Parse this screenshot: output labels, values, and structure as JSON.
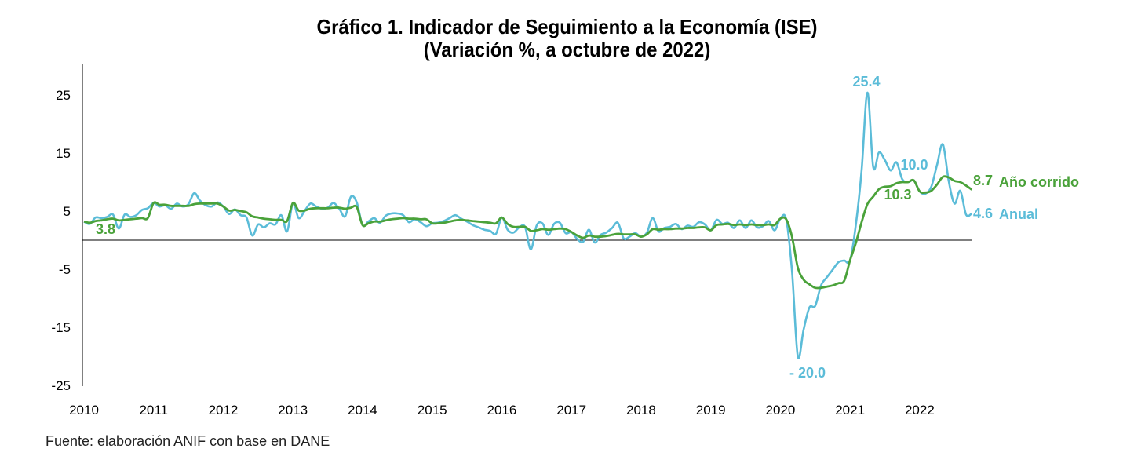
{
  "title": "Gráfico 1. Indicador de Seguimiento a la Economía (ISE)",
  "subtitle": "(Variación %, a octubre de 2022)",
  "source": "Fuente: elaboración ANIF con base en DANE",
  "chart_data": {
    "type": "line",
    "title": "Gráfico 1. Indicador de Seguimiento a la Economía (ISE)",
    "subtitle": "(Variación %, a octubre de 2022)",
    "xlabel": "",
    "ylabel": "",
    "ylim": [
      -25,
      30
    ],
    "yticks": [
      25,
      15,
      5,
      -5,
      -15,
      -25
    ],
    "ytick_labels": [
      "25",
      "15",
      "5",
      "-5",
      "-15",
      "-25"
    ],
    "x_start": 2010,
    "x_end_year": 2022,
    "x_end_month": 10,
    "xticks": [
      "2010",
      "2011",
      "2012",
      "2013",
      "2014",
      "2015",
      "2016",
      "2017",
      "2018",
      "2019",
      "2020",
      "2021",
      "2022"
    ],
    "baseline": 0,
    "colors": {
      "anual": "#5bbcd8",
      "corrido": "#4aa23a",
      "axis": "#000000"
    },
    "series": [
      {
        "name": "Anual",
        "color": "#5bbcd8",
        "values": [
          3.2,
          2.8,
          3.9,
          3.8,
          4.0,
          4.4,
          2.0,
          4.4,
          4.0,
          4.3,
          5.2,
          5.5,
          6.4,
          5.8,
          6.0,
          5.4,
          6.3,
          5.8,
          6.2,
          8.1,
          6.8,
          6.0,
          5.8,
          6.5,
          5.8,
          4.5,
          5.3,
          4.3,
          3.9,
          0.8,
          2.7,
          2.2,
          2.9,
          2.7,
          4.3,
          1.5,
          6.4,
          3.8,
          5.0,
          6.3,
          5.8,
          5.4,
          5.6,
          6.4,
          5.4,
          4.1,
          7.5,
          6.5,
          2.6,
          3.2,
          3.8,
          3.0,
          4.2,
          4.6,
          4.6,
          4.3,
          3.1,
          3.6,
          3.1,
          2.4,
          2.9,
          3.0,
          3.3,
          3.8,
          4.3,
          3.7,
          3.2,
          2.6,
          2.2,
          1.8,
          1.6,
          1.1,
          3.9,
          1.8,
          1.3,
          2.2,
          2.3,
          -1.6,
          2.5,
          2.9,
          0.9,
          2.8,
          3.0,
          1.2,
          1.4,
          0.2,
          -0.3,
          1.8,
          -0.4,
          0.9,
          1.3,
          2.1,
          3.0,
          0.3,
          0.6,
          1.2,
          0.6,
          1.3,
          3.8,
          1.5,
          2.1,
          2.3,
          2.8,
          1.9,
          2.5,
          2.3,
          3.1,
          2.7,
          1.7,
          3.5,
          2.8,
          3.0,
          2.1,
          3.4,
          2.1,
          3.4,
          2.2,
          2.4,
          3.3,
          1.7,
          3.7,
          3.6,
          -5.3,
          -20.0,
          -15.4,
          -11.6,
          -11.3,
          -7.8,
          -6.4,
          -5.1,
          -3.8,
          -3.5,
          -3.5,
          2.6,
          12.0,
          25.4,
          12.6,
          15.1,
          13.8,
          12.0,
          13.4,
          10.5,
          10.0,
          10.3,
          8.4,
          8.0,
          9.2,
          13.0,
          16.5,
          10.2,
          6.3,
          8.5,
          4.4,
          4.6
        ]
      },
      {
        "name": "Año corrido",
        "color": "#4aa23a",
        "values": [
          3.2,
          3.0,
          3.3,
          3.4,
          3.6,
          3.7,
          3.4,
          3.5,
          3.6,
          3.7,
          3.8,
          3.8,
          6.4,
          6.1,
          6.1,
          5.9,
          5.9,
          5.9,
          5.9,
          6.2,
          6.3,
          6.3,
          6.3,
          6.3,
          5.8,
          5.1,
          5.2,
          5.0,
          4.8,
          4.1,
          3.9,
          3.7,
          3.6,
          3.5,
          3.5,
          3.3,
          6.4,
          5.1,
          5.1,
          5.4,
          5.5,
          5.5,
          5.5,
          5.6,
          5.6,
          5.4,
          5.6,
          5.7,
          2.6,
          2.9,
          3.2,
          3.2,
          3.4,
          3.6,
          3.7,
          3.8,
          3.7,
          3.7,
          3.6,
          3.6,
          2.9,
          2.9,
          3.0,
          3.2,
          3.4,
          3.5,
          3.4,
          3.3,
          3.2,
          3.1,
          3.0,
          2.9,
          3.9,
          2.8,
          2.3,
          2.3,
          2.3,
          1.6,
          1.7,
          1.9,
          1.8,
          1.9,
          2.0,
          1.9,
          1.4,
          0.8,
          0.4,
          0.8,
          0.6,
          0.6,
          0.7,
          0.9,
          1.1,
          1.0,
          1.0,
          1.0,
          0.6,
          1.0,
          1.9,
          1.8,
          1.9,
          1.9,
          2.0,
          2.0,
          2.1,
          2.1,
          2.2,
          2.2,
          1.7,
          2.6,
          2.7,
          2.8,
          2.6,
          2.7,
          2.6,
          2.7,
          2.6,
          2.6,
          2.7,
          2.6,
          3.7,
          3.6,
          0.6,
          -4.7,
          -6.8,
          -7.6,
          -8.2,
          -8.2,
          -8.0,
          -7.8,
          -7.4,
          -7.0,
          -3.5,
          -0.5,
          3.1,
          6.2,
          7.5,
          8.8,
          9.2,
          9.3,
          9.8,
          10.0,
          10.0,
          10.3,
          8.4,
          8.2,
          8.5,
          9.6,
          10.9,
          10.8,
          10.2,
          10.0,
          9.4,
          8.7
        ]
      }
    ],
    "annotations": [
      {
        "text": "3.8",
        "series": "Año corrido"
      },
      {
        "text": "25.4",
        "series": "Anual"
      },
      {
        "text": "10.0",
        "series": "Anual"
      },
      {
        "text": "10.3",
        "series": "Año corrido"
      },
      {
        "text": "- 20.0",
        "series": "Anual"
      },
      {
        "text": "8.7",
        "series": "Año corrido"
      },
      {
        "text": "4.6",
        "series": "Anual"
      }
    ],
    "legend": [
      {
        "text": "Año corrido",
        "color": "#4aa23a"
      },
      {
        "text": "Anual",
        "color": "#5bbcd8"
      }
    ]
  }
}
